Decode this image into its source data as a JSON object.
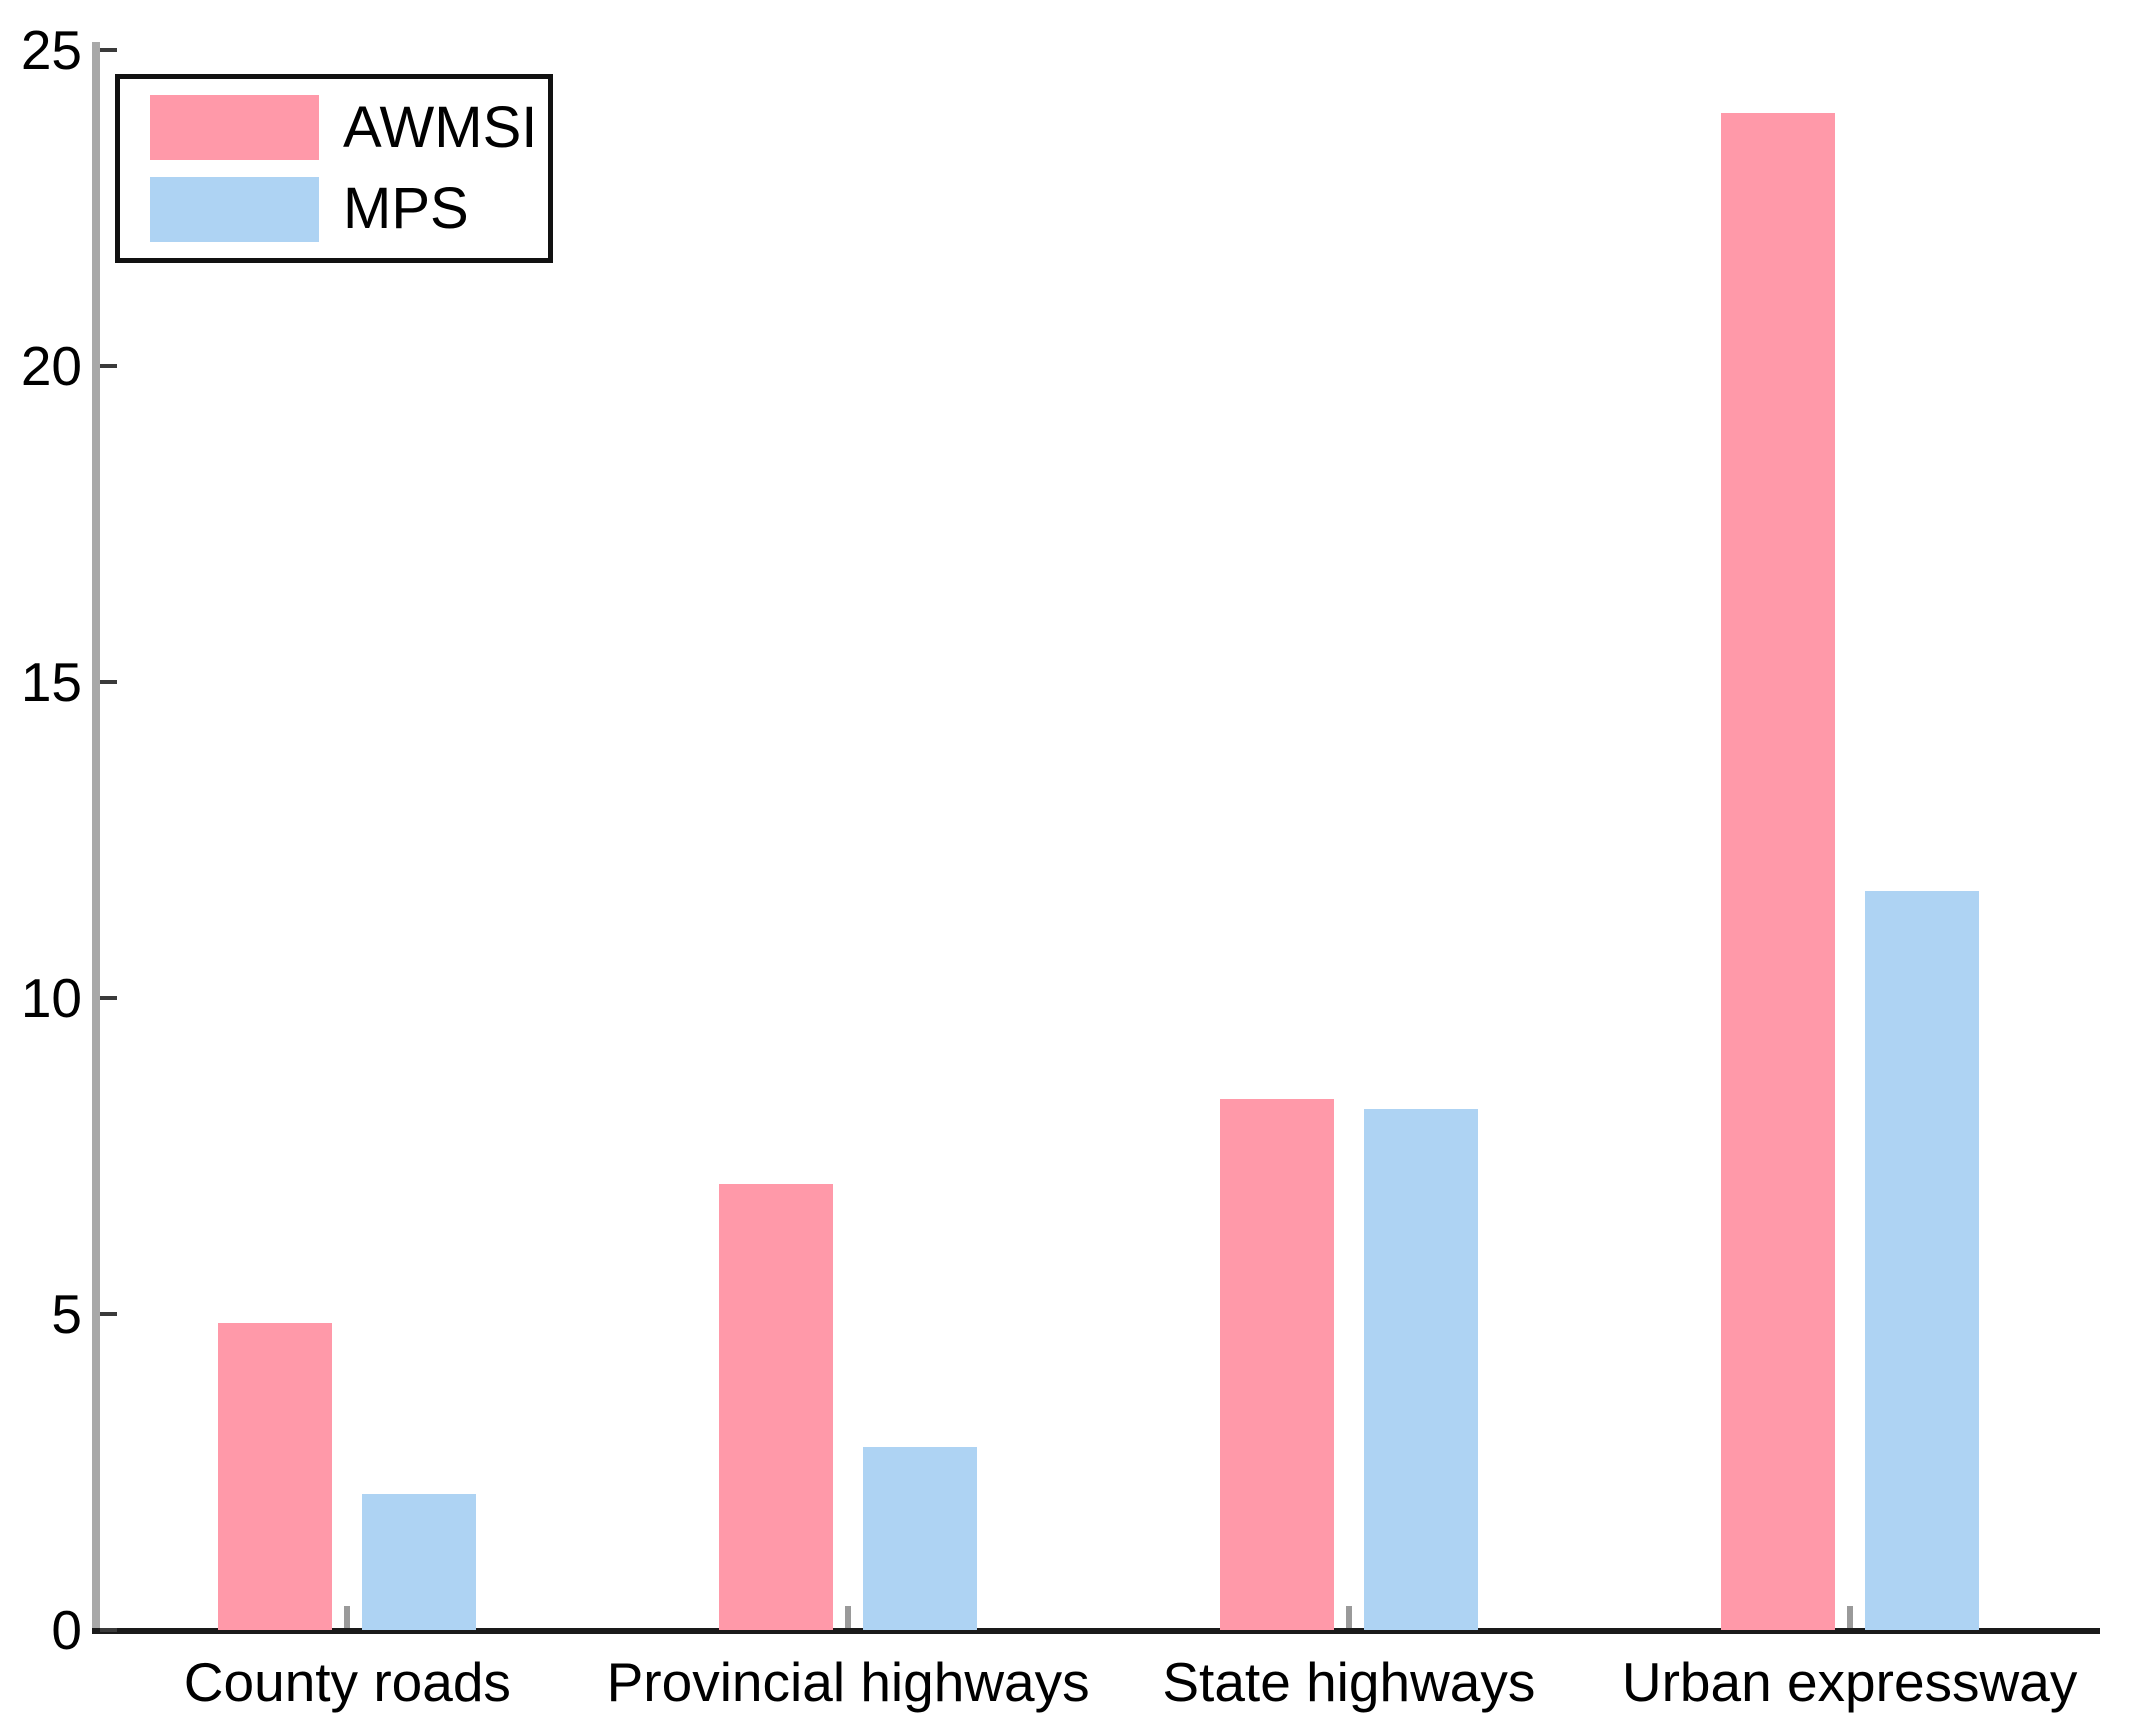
{
  "chart_data": {
    "type": "bar",
    "title": "",
    "xlabel": "",
    "ylabel": "",
    "categories": [
      "County roads",
      "Provincial highways",
      "State highways",
      "Urban expressway"
    ],
    "series": [
      {
        "name": "AWMSI",
        "color": "#ff99a9",
        "values": [
          4.85,
          7.05,
          8.4,
          24.0
        ]
      },
      {
        "name": "MPS",
        "color": "#aed3f3",
        "values": [
          2.15,
          2.9,
          8.25,
          11.7
        ]
      }
    ],
    "ylim": [
      0,
      25
    ],
    "yticks": [
      0,
      5,
      10,
      15,
      20,
      25
    ],
    "y_tick_labels": [
      "0",
      "5",
      "10",
      "15",
      "20",
      "25"
    ],
    "grid": false,
    "legend": {
      "position": "top-left",
      "entries": [
        "AWMSI",
        "MPS"
      ]
    }
  },
  "colors": {
    "background": "#ffffff",
    "text": "#000000",
    "y_axis_line": "#a8a8a8",
    "x_axis_line": "#1a1a1a",
    "y_tick": "#3a3a3a",
    "x_tick": "#9a9a9a",
    "awmsi_bar": "#ff99a9",
    "mps_bar": "#aed3f3"
  }
}
